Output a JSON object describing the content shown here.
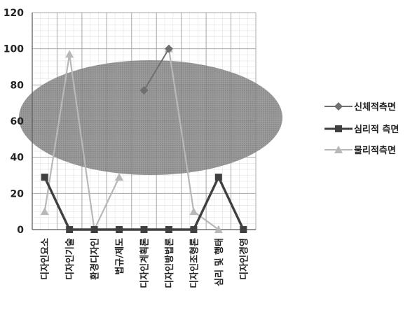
{
  "chart_data": {
    "type": "line",
    "categories": [
      "디자인요소",
      "디자인기술",
      "환경디자인",
      "법규/제도",
      "디자인계획론",
      "디자인방법론",
      "디자인조형론",
      "심리 및 행태",
      "디자인경영"
    ],
    "series": [
      {
        "name": "신체적측면",
        "values": [
          null,
          null,
          null,
          null,
          77,
          100,
          null,
          null,
          null
        ],
        "color": "#6f6f6f",
        "marker": "diamond"
      },
      {
        "name": "심리적 측면",
        "values": [
          29,
          0,
          0,
          0,
          0,
          0,
          0,
          29,
          0
        ],
        "color": "#404040",
        "marker": "square"
      },
      {
        "name": "물리적측면",
        "values": [
          10,
          97,
          0,
          29,
          null,
          100,
          10,
          0,
          null
        ],
        "color": "#b8b8b8",
        "marker": "triangle"
      }
    ],
    "ylim": [
      0,
      120
    ],
    "yticks": [
      0,
      20,
      40,
      60,
      80,
      100,
      120
    ],
    "grid": true,
    "legend": "right",
    "annotation": "shaded ellipse over categories 1-9, values ~38-95"
  }
}
